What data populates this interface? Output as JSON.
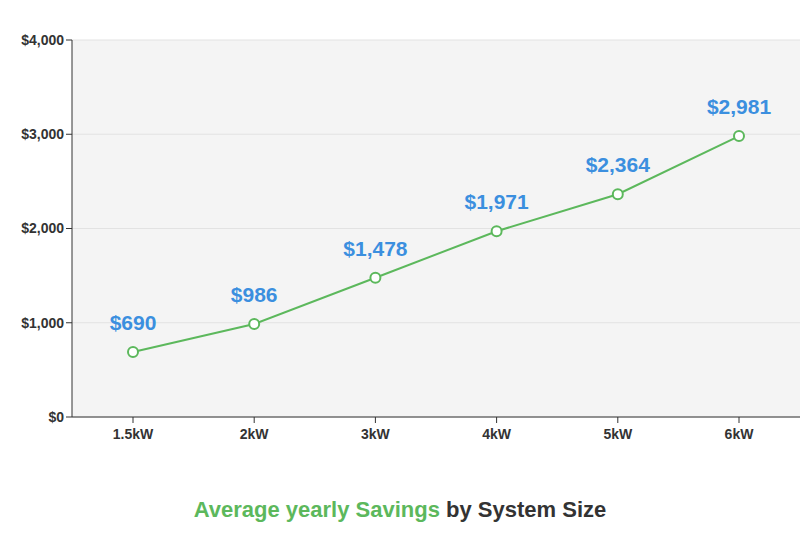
{
  "chart_data": {
    "type": "line",
    "title": "Average yearly Savings by System Size",
    "categories": [
      "1.5kW",
      "2kW",
      "3kW",
      "4kW",
      "5kW",
      "6kW"
    ],
    "values": [
      690,
      986,
      1478,
      1971,
      2364,
      2981
    ],
    "value_labels": [
      "$690",
      "$986",
      "$1,478",
      "$1,971",
      "$2,364",
      "$2,981"
    ],
    "data_labels": true,
    "color": "#5cb85c",
    "marker": "circle",
    "ylim": [
      0,
      4000
    ],
    "yticks": [
      {
        "value": 0,
        "label": "$0"
      },
      {
        "value": 1000,
        "label": "$1,000"
      },
      {
        "value": 2000,
        "label": "$2,000"
      },
      {
        "value": 3000,
        "label": "$3,000"
      },
      {
        "value": 4000,
        "label": "$4,000"
      }
    ],
    "grid": true
  }
}
